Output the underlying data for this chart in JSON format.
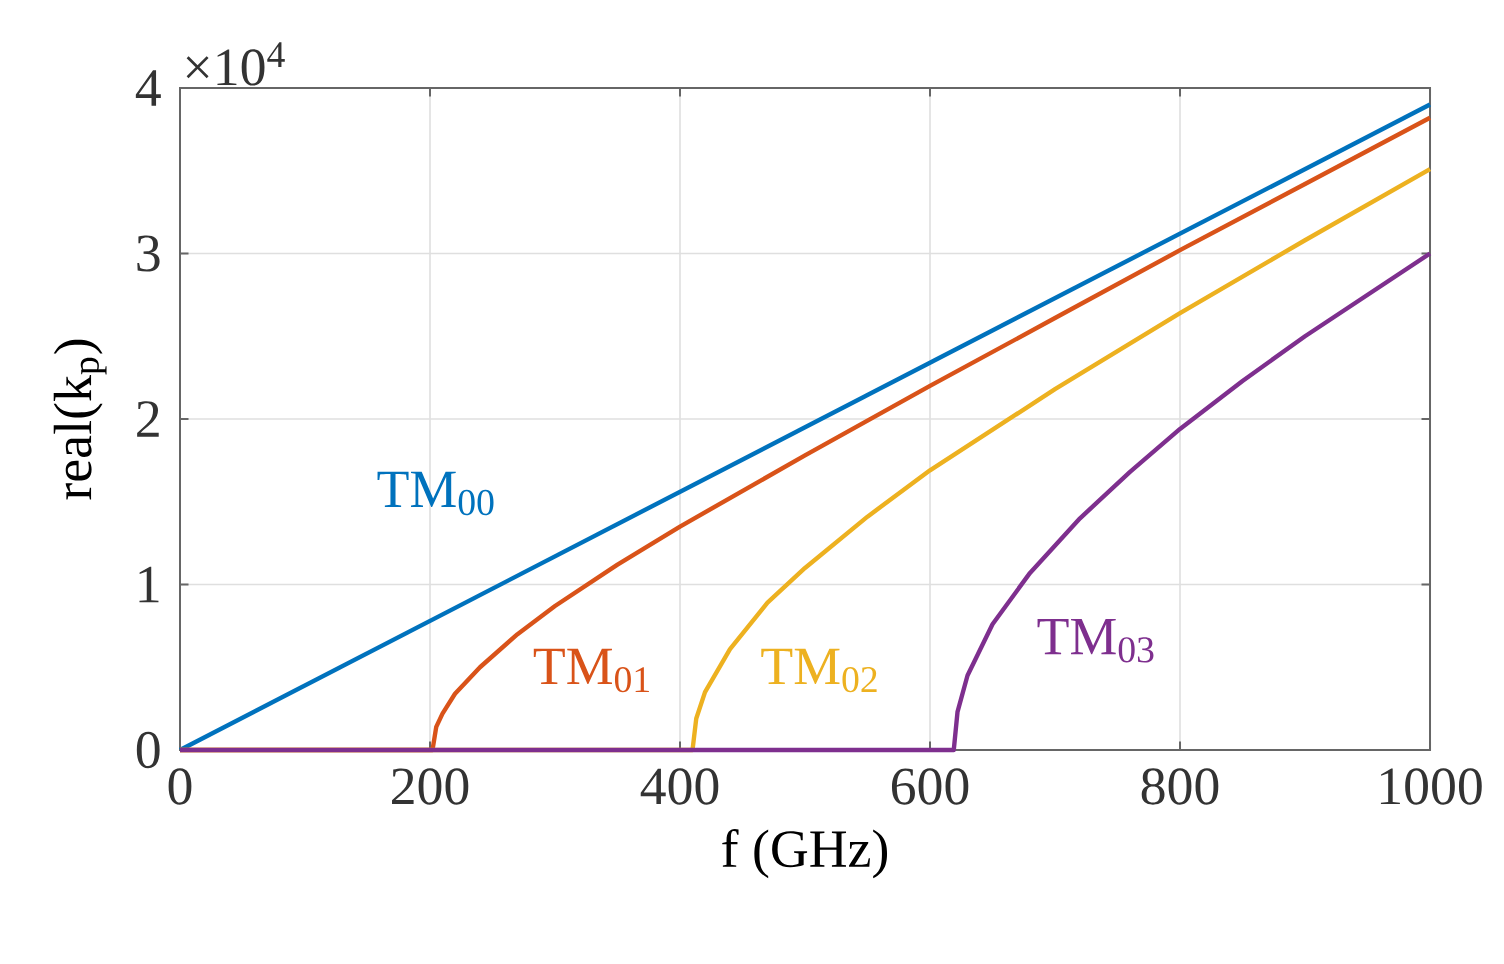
{
  "chart_data": {
    "type": "line",
    "xlabel": "f (GHz)",
    "ylabel": "real(k$_{p}$)",
    "annotations": [
      "×10$^{4}$"
    ],
    "xlim": [
      0,
      1000
    ],
    "ylim": [
      0,
      4
    ],
    "xticks": [
      0,
      200,
      400,
      600,
      800,
      1000
    ],
    "yticks": [
      0,
      1,
      2,
      3,
      4
    ],
    "grid": true,
    "legend": false,
    "marker": "none",
    "line_style": "solid",
    "series": [
      {
        "name": "TM$_{00}$",
        "color": "#0072bd",
        "x": [
          0,
          1000
        ],
        "values": [
          0,
          3.9
        ]
      },
      {
        "name": "TM$_{01}$",
        "color": "#d95319",
        "x": [
          0,
          202,
          205,
          210,
          220,
          240,
          270,
          300,
          350,
          400,
          500,
          600,
          700,
          800,
          900,
          1000
        ],
        "values": [
          0,
          0,
          0.14,
          0.22,
          0.34,
          0.5,
          0.7,
          0.87,
          1.12,
          1.35,
          1.78,
          2.2,
          2.61,
          3.02,
          3.42,
          3.82
        ]
      },
      {
        "name": "TM$_{02}$",
        "color": "#edb120",
        "x": [
          0,
          410,
          413,
          420,
          440,
          470,
          500,
          550,
          600,
          700,
          800,
          900,
          1000
        ],
        "values": [
          0,
          0,
          0.19,
          0.35,
          0.61,
          0.89,
          1.1,
          1.41,
          1.69,
          2.18,
          2.64,
          3.08,
          3.51
        ]
      },
      {
        "name": "TM$_{03}$",
        "color": "#7e2f8e",
        "x": [
          0,
          619,
          622,
          630,
          650,
          680,
          720,
          760,
          800,
          850,
          900,
          950,
          1000
        ],
        "values": [
          0,
          0,
          0.23,
          0.45,
          0.76,
          1.07,
          1.4,
          1.68,
          1.94,
          2.23,
          2.5,
          2.75,
          3.0
        ]
      }
    ]
  }
}
